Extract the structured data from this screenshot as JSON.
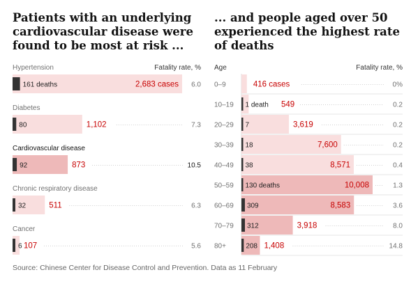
{
  "left_title": "Patients with an underlying cardiovascular disease were found to be most at risk ...",
  "right_title": "... and people aged over 50 experienced the highest rate of deaths",
  "source": "Source: Chinese Center for Disease Control and Prevention. Data as 11 February",
  "colors": {
    "case_bar_light": "#f9dede",
    "case_bar_dark": "#eeb9b9",
    "death_bar": "#333333",
    "case_text": "#c70000",
    "text": "#333333",
    "muted": "#707070"
  },
  "chart_data": [
    {
      "type": "bar",
      "title": "Patients with an underlying cardiovascular disease were found to be most at risk ...",
      "fatality_label": "Fatality rate, %",
      "categories": [
        "Hypertension",
        "Diabetes",
        "Cardiovascular disease",
        "Chronic respiratory disease",
        "Cancer"
      ],
      "series": [
        {
          "values": [
            2683,
            1102,
            873,
            511,
            107
          ],
          "labels": [
            "2,683 cases",
            "1,102",
            "873",
            "511",
            "107"
          ]
        },
        {
          "values": [
            161,
            80,
            92,
            32,
            6
          ],
          "labels": [
            "161 deaths",
            "80",
            "92",
            "32",
            "6"
          ]
        }
      ],
      "fatality_rate": [
        6.0,
        7.3,
        10.5,
        6.3,
        5.6
      ],
      "fatality_labels": [
        "6.0",
        "7.3",
        "10.5",
        "6.3",
        "5.6"
      ]
    },
    {
      "type": "bar",
      "title": "... and people aged over 50 experienced the highest rate of deaths",
      "category_header": "Age",
      "fatality_label": "Fatality rate, %",
      "categories": [
        "0–9",
        "10–19",
        "20–29",
        "30–39",
        "40–49",
        "50–59",
        "60–69",
        "70–79",
        "80+"
      ],
      "series": [
        {
          "values": [
            416,
            549,
            3619,
            7600,
            8571,
            10008,
            8583,
            3918,
            1408
          ],
          "labels": [
            "416 cases",
            "549",
            "3,619",
            "7,600",
            "8,571",
            "10,008",
            "8,583",
            "3,918",
            "1,408"
          ]
        },
        {
          "values": [
            0,
            1,
            7,
            18,
            38,
            130,
            309,
            312,
            208
          ],
          "labels": [
            "",
            "1 death",
            "7",
            "18",
            "38",
            "130 deaths",
            "309",
            "312",
            "208"
          ]
        }
      ],
      "fatality_rate": [
        0,
        0.2,
        0.2,
        0.2,
        0.4,
        1.3,
        3.6,
        8.0,
        14.8
      ],
      "fatality_labels": [
        "0%",
        "0.2",
        "0.2",
        "0.2",
        "0.4",
        "1.3",
        "3.6",
        "8.0",
        "14.8"
      ]
    }
  ]
}
